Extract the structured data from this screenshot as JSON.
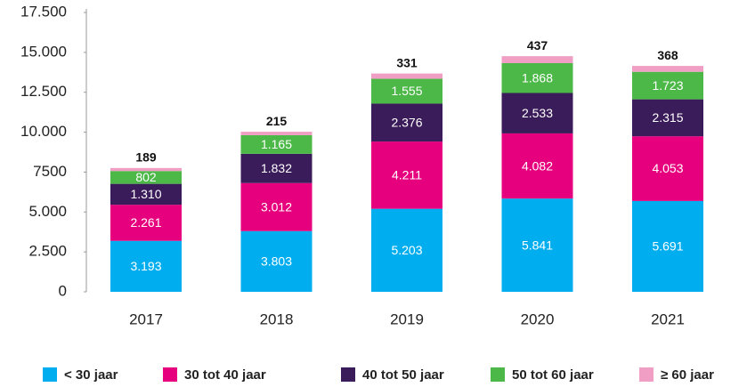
{
  "chart_data": {
    "type": "stacked_bar",
    "categories": [
      "2017",
      "2018",
      "2019",
      "2020",
      "2021"
    ],
    "series": [
      {
        "name": "< 30 jaar",
        "color": "#00aeef",
        "values": [
          3193,
          3803,
          5203,
          5841,
          5691
        ],
        "value_labels": [
          "3.193",
          "3.803",
          "5.203",
          "5.841",
          "5.691"
        ]
      },
      {
        "name": "30 tot 40 jaar",
        "color": "#e6007e",
        "values": [
          2261,
          3012,
          4211,
          4082,
          4053
        ],
        "value_labels": [
          "2.261",
          "3.012",
          "4.211",
          "4.082",
          "4.053"
        ]
      },
      {
        "name": "40 tot 50 jaar",
        "color": "#3b1c5a",
        "values": [
          1310,
          1832,
          2376,
          2533,
          2315
        ],
        "value_labels": [
          "1.310",
          "1.832",
          "2.376",
          "2.533",
          "2.315"
        ]
      },
      {
        "name": "50 tot 60 jaar",
        "color": "#4cb848",
        "values": [
          802,
          1165,
          1555,
          1868,
          1723
        ],
        "value_labels": [
          "802",
          "1.165",
          "1.555",
          "1.868",
          "1.723"
        ]
      },
      {
        "name": "≥ 60 jaar",
        "color": "#f09ec4",
        "values": [
          189,
          215,
          331,
          437,
          368
        ]
      }
    ],
    "ylim": [
      0,
      17500
    ],
    "yticks": [
      0,
      {
        "value": 2500,
        "label": "2.500"
      },
      {
        "value": 5000,
        "label": "5.000"
      },
      {
        "value": 7500,
        "label": "7500"
      },
      {
        "value": 10000,
        "label": "10.000"
      },
      {
        "value": 12500,
        "label": "12.500"
      },
      {
        "value": 15000,
        "label": "15.000"
      },
      {
        "value": 17500,
        "label": "17.500"
      }
    ],
    "legend": "bottom"
  }
}
